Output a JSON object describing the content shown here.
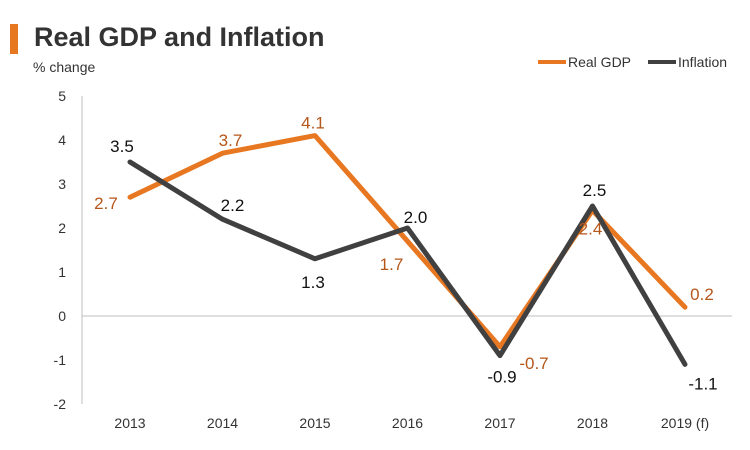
{
  "header": {
    "title": "Real GDP and Inflation",
    "subtitle": "% change"
  },
  "colors": {
    "title_accent": "#e87722",
    "gdp": "#e87722",
    "inflation": "#404040",
    "gdp_label": "#b5561a",
    "inflation_label": "#111111",
    "axis": "#bfbfbf",
    "text": "#333333"
  },
  "chart_data": {
    "type": "line",
    "title": "Real GDP and Inflation",
    "ylabel": "% change",
    "xlabel": "",
    "categories": [
      "2013",
      "2014",
      "2015",
      "2016",
      "2017",
      "2018",
      "2019 (f)"
    ],
    "ylim": [
      -2,
      5
    ],
    "yticks": [
      "5",
      "4",
      "3",
      "2",
      "1",
      "0",
      "-1",
      "-2"
    ],
    "legend_position": "top-right",
    "grid": false,
    "series": [
      {
        "name": "Real GDP",
        "values": [
          2.7,
          3.7,
          4.1,
          1.7,
          -0.7,
          2.4,
          0.2
        ],
        "labels": [
          "2.7",
          "3.7",
          "4.1",
          "1.7",
          "-0.7",
          "2.4",
          "0.2"
        ]
      },
      {
        "name": "Inflation",
        "values": [
          3.5,
          2.2,
          1.3,
          2.0,
          -0.9,
          2.5,
          -1.1
        ],
        "labels": [
          "3.5",
          "2.2",
          "1.3",
          "2.0",
          "-0.9",
          "2.5",
          "-1.1"
        ]
      }
    ]
  }
}
